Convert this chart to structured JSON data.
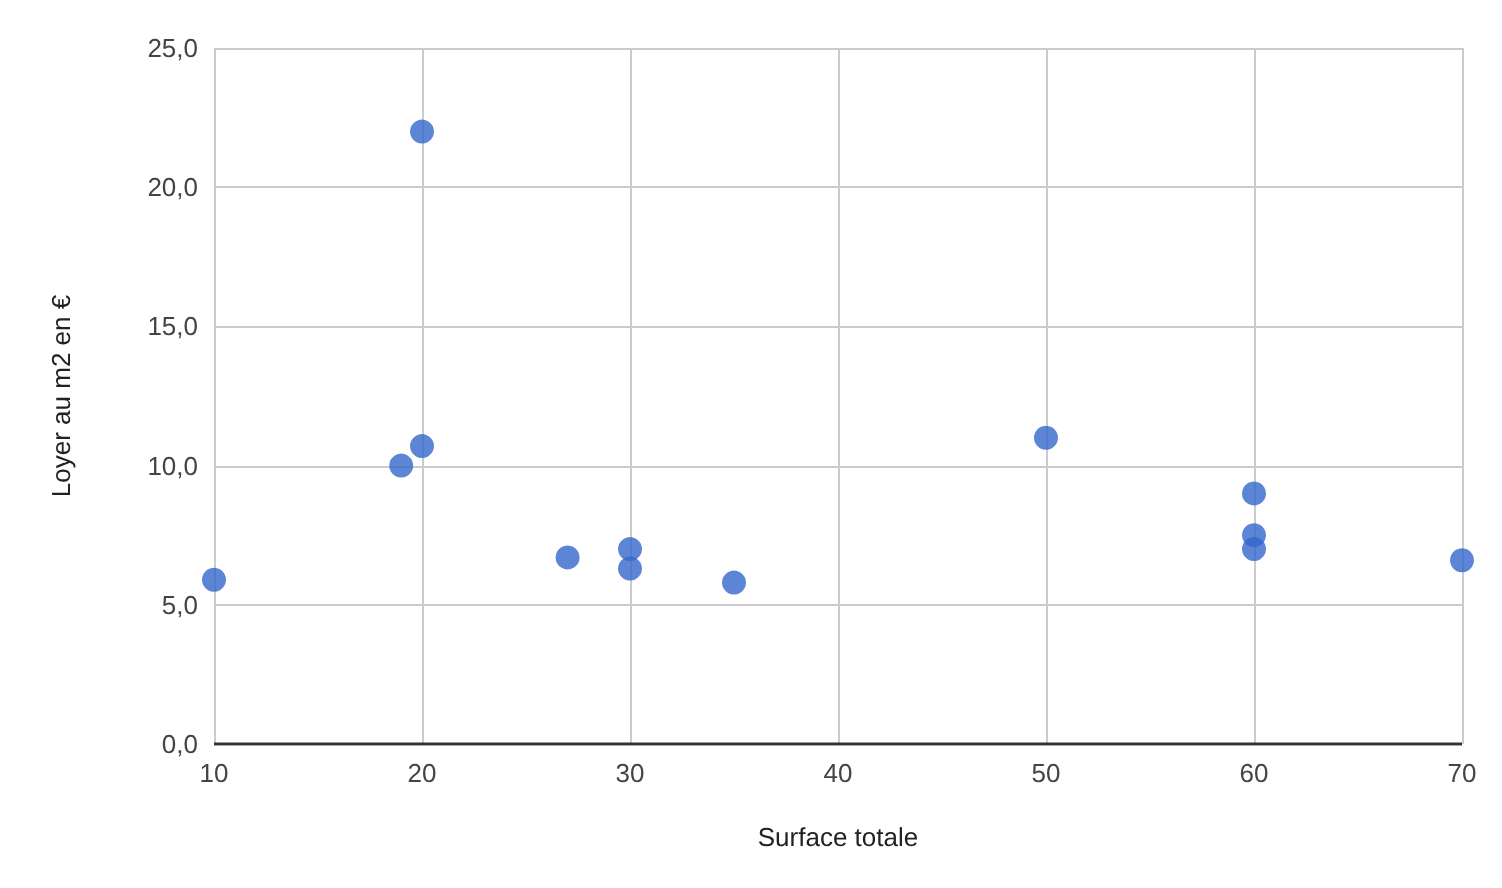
{
  "chart_data": {
    "type": "scatter",
    "xlabel": "Surface totale",
    "ylabel": "Loyer au m2 en €",
    "x": [
      10,
      19,
      20,
      20,
      27,
      30,
      30,
      35,
      50,
      60,
      60,
      60,
      70
    ],
    "series": [
      {
        "color": "#3366cc",
        "values": [
          5.9,
          10.0,
          10.7,
          22.0,
          6.7,
          7.0,
          6.3,
          5.8,
          11.0,
          9.0,
          7.5,
          7.0,
          6.6
        ]
      }
    ],
    "xlim": [
      10,
      70
    ],
    "xticks": [
      10,
      20,
      30,
      40,
      50,
      60,
      70
    ],
    "ylim": [
      0,
      25
    ],
    "yticks": [
      {
        "value": 0,
        "label": "0,0"
      },
      {
        "value": 5,
        "label": "5,0"
      },
      {
        "value": 10,
        "label": "10,0"
      },
      {
        "value": 15,
        "label": "15,0"
      },
      {
        "value": 20,
        "label": "20,0"
      },
      {
        "value": 25,
        "label": "25,0"
      }
    ],
    "grid": true,
    "marker": "circle"
  }
}
